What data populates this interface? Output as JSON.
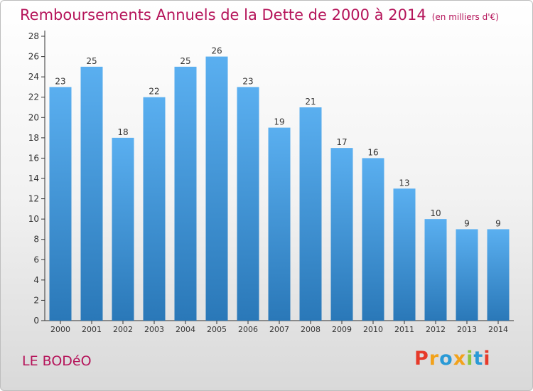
{
  "title": "Remboursements Annuels de la Dette de 2000 à 2014",
  "unit_label": "(en milliers d'€)",
  "commune": "LE BODéO",
  "logo": {
    "letters": [
      "P",
      "r",
      "o",
      "x",
      "i",
      "t",
      "i"
    ],
    "colors": [
      "#e63a2a",
      "#f2a21b",
      "#2a9ad6",
      "#f2a21b",
      "#8cc63f",
      "#2a9ad6",
      "#e63a2a"
    ]
  },
  "colors": {
    "title": "#b5145a",
    "bar_top": "#5aaff0",
    "bar_bottom": "#2a78b8",
    "axis": "#333333"
  },
  "chart_data": {
    "type": "bar",
    "categories": [
      "2000",
      "2001",
      "2002",
      "2003",
      "2004",
      "2005",
      "2006",
      "2007",
      "2008",
      "2009",
      "2010",
      "2011",
      "2012",
      "2013",
      "2014"
    ],
    "values": [
      23,
      25,
      18,
      22,
      25,
      26,
      23,
      19,
      21,
      17,
      16,
      13,
      10,
      9,
      9
    ],
    "ylim": [
      0,
      28
    ],
    "yticks": [
      0,
      2,
      4,
      6,
      8,
      10,
      12,
      14,
      16,
      18,
      20,
      22,
      24,
      26,
      28
    ],
    "grid": false,
    "legend": "none",
    "xlabel": "",
    "ylabel": ""
  }
}
